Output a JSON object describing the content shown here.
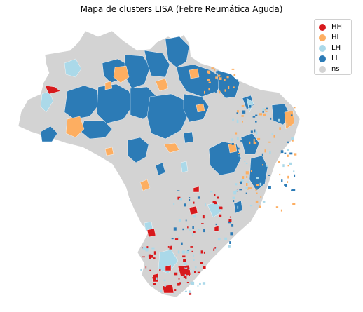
{
  "title": "Mapa de clusters LISA (Febre Reumática Aguda)",
  "legend": [
    {
      "label": "HH",
      "color": "#d7191c"
    },
    {
      "label": "HL",
      "color": "#fdae61"
    },
    {
      "label": "LH",
      "color": "#abd9e9"
    },
    {
      "label": "LL",
      "color": "#2c7bb6"
    },
    {
      "label": "ns",
      "color": "#d3d3d3"
    }
  ],
  "colors": {
    "ns": "#d3d3d3",
    "border": "#ffffff"
  }
}
